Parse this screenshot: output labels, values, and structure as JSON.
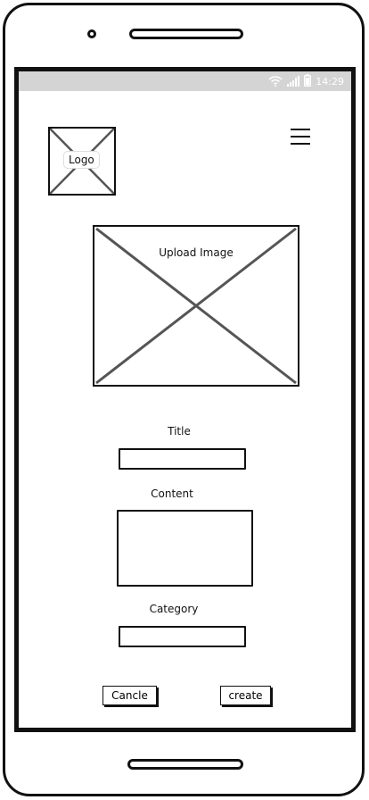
{
  "statusbar": {
    "time": "14:29",
    "icons": [
      "wifi-icon",
      "signal-icon",
      "battery-icon"
    ]
  },
  "header": {
    "logo_label": "Logo",
    "menu_icon": "hamburger-menu-icon"
  },
  "upload": {
    "label": "Upload Image"
  },
  "form": {
    "title_label": "Title",
    "title_value": "",
    "content_label": "Content",
    "content_value": "",
    "category_label": "Category",
    "category_value": ""
  },
  "actions": {
    "cancel_label": "Cancle",
    "create_label": "create"
  }
}
